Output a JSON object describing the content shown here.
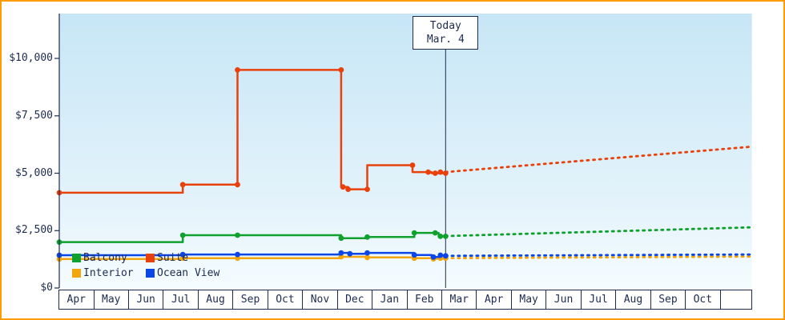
{
  "frame": {
    "border_color": "#ff9d00",
    "background": "#ffffff"
  },
  "chart_data": {
    "type": "line",
    "today": {
      "label1": "Today",
      "label2": "Mar. 4",
      "month_index": 11.1
    },
    "plot_background_gradient": [
      "#c7e6f6",
      "#e4f3fb",
      "#f5fcff"
    ],
    "axis_color": "#1d2c4e",
    "y_axis": {
      "ticks_values": [
        0,
        2500,
        5000,
        7500,
        10000
      ],
      "ticks_labels": [
        "$0",
        "$2,500",
        "$5,000",
        "$7,500",
        "$10,000"
      ],
      "range": [
        0,
        11950
      ]
    },
    "x_axis": {
      "month_labels": [
        "Apr",
        "May",
        "Jun",
        "Jul",
        "Aug",
        "Sep",
        "Oct",
        "Nov",
        "Dec",
        "Jan",
        "Feb",
        "Mar",
        "Apr",
        "May",
        "Jun",
        "Jul",
        "Aug",
        "Sep",
        "Oct"
      ]
    },
    "legend": [
      "Balcony",
      "Suite",
      "Interior",
      "Ocean View"
    ],
    "series": [
      {
        "name": "Interior",
        "color": "#F2A50C",
        "history": [
          [
            0,
            1260
          ],
          [
            3.55,
            1260
          ],
          [
            3.55,
            1300
          ],
          [
            8.1,
            1300
          ],
          [
            8.1,
            1360
          ],
          [
            8.85,
            1360
          ],
          [
            8.85,
            1330
          ],
          [
            10.2,
            1330
          ],
          [
            10.2,
            1300
          ],
          [
            10.75,
            1300
          ],
          [
            10.75,
            1270
          ],
          [
            11.1,
            1300
          ]
        ],
        "points": [
          [
            0,
            1260
          ],
          [
            3.55,
            1300
          ],
          [
            5.12,
            1300
          ],
          [
            8.1,
            1360
          ],
          [
            8.85,
            1330
          ],
          [
            10.2,
            1300
          ],
          [
            10.75,
            1270
          ],
          [
            10.95,
            1300
          ],
          [
            11.1,
            1300
          ]
        ],
        "forecast": [
          [
            11.1,
            1300
          ],
          [
            19.85,
            1370
          ]
        ]
      },
      {
        "name": "Ocean View",
        "color": "#0B46E8",
        "history": [
          [
            0,
            1430
          ],
          [
            3.55,
            1430
          ],
          [
            3.55,
            1460
          ],
          [
            8.1,
            1460
          ],
          [
            8.1,
            1530
          ],
          [
            8.35,
            1530
          ],
          [
            8.35,
            1490
          ],
          [
            8.85,
            1490
          ],
          [
            8.85,
            1530
          ],
          [
            10.2,
            1530
          ],
          [
            10.2,
            1440
          ],
          [
            10.7,
            1440
          ],
          [
            10.7,
            1350
          ],
          [
            10.95,
            1350
          ],
          [
            10.95,
            1430
          ],
          [
            11.1,
            1400
          ]
        ],
        "points": [
          [
            0,
            1430
          ],
          [
            3.55,
            1460
          ],
          [
            5.12,
            1460
          ],
          [
            8.1,
            1530
          ],
          [
            8.35,
            1490
          ],
          [
            8.85,
            1530
          ],
          [
            10.2,
            1440
          ],
          [
            10.75,
            1350
          ],
          [
            10.95,
            1430
          ],
          [
            11.1,
            1400
          ]
        ],
        "forecast": [
          [
            11.1,
            1400
          ],
          [
            19.85,
            1460
          ]
        ]
      },
      {
        "name": "Balcony",
        "color": "#0FA02E",
        "history": [
          [
            0,
            2000
          ],
          [
            3.55,
            2000
          ],
          [
            3.55,
            2300
          ],
          [
            8.1,
            2300
          ],
          [
            8.1,
            2170
          ],
          [
            8.85,
            2170
          ],
          [
            8.85,
            2220
          ],
          [
            10.2,
            2220
          ],
          [
            10.2,
            2400
          ],
          [
            10.9,
            2400
          ],
          [
            10.9,
            2250
          ],
          [
            11.1,
            2250
          ]
        ],
        "points": [
          [
            0,
            2000
          ],
          [
            3.55,
            2300
          ],
          [
            5.12,
            2300
          ],
          [
            8.1,
            2170
          ],
          [
            8.85,
            2220
          ],
          [
            10.2,
            2400
          ],
          [
            10.8,
            2400
          ],
          [
            10.95,
            2250
          ],
          [
            11.1,
            2250
          ]
        ],
        "forecast": [
          [
            11.1,
            2260
          ],
          [
            19.85,
            2640
          ]
        ]
      },
      {
        "name": "Suite",
        "color": "#E8410C",
        "history": [
          [
            0,
            4150
          ],
          [
            3.55,
            4150
          ],
          [
            3.55,
            4500
          ],
          [
            5.12,
            4500
          ],
          [
            5.12,
            9500
          ],
          [
            8.1,
            9500
          ],
          [
            8.1,
            4400
          ],
          [
            8.3,
            4400
          ],
          [
            8.3,
            4300
          ],
          [
            8.85,
            4300
          ],
          [
            8.85,
            5350
          ],
          [
            10.15,
            5350
          ],
          [
            10.15,
            5050
          ],
          [
            10.7,
            5050
          ],
          [
            10.7,
            5000
          ],
          [
            11.1,
            5000
          ]
        ],
        "points": [
          [
            0,
            4150
          ],
          [
            3.55,
            4500
          ],
          [
            5.12,
            4500
          ],
          [
            5.12,
            9500
          ],
          [
            8.1,
            9500
          ],
          [
            8.15,
            4400
          ],
          [
            8.3,
            4300
          ],
          [
            8.85,
            4300
          ],
          [
            10.15,
            5350
          ],
          [
            10.6,
            5050
          ],
          [
            10.8,
            5000
          ],
          [
            10.95,
            5050
          ],
          [
            11.1,
            5000
          ]
        ],
        "forecast": [
          [
            11.1,
            5050
          ],
          [
            19.85,
            6150
          ]
        ]
      }
    ]
  }
}
